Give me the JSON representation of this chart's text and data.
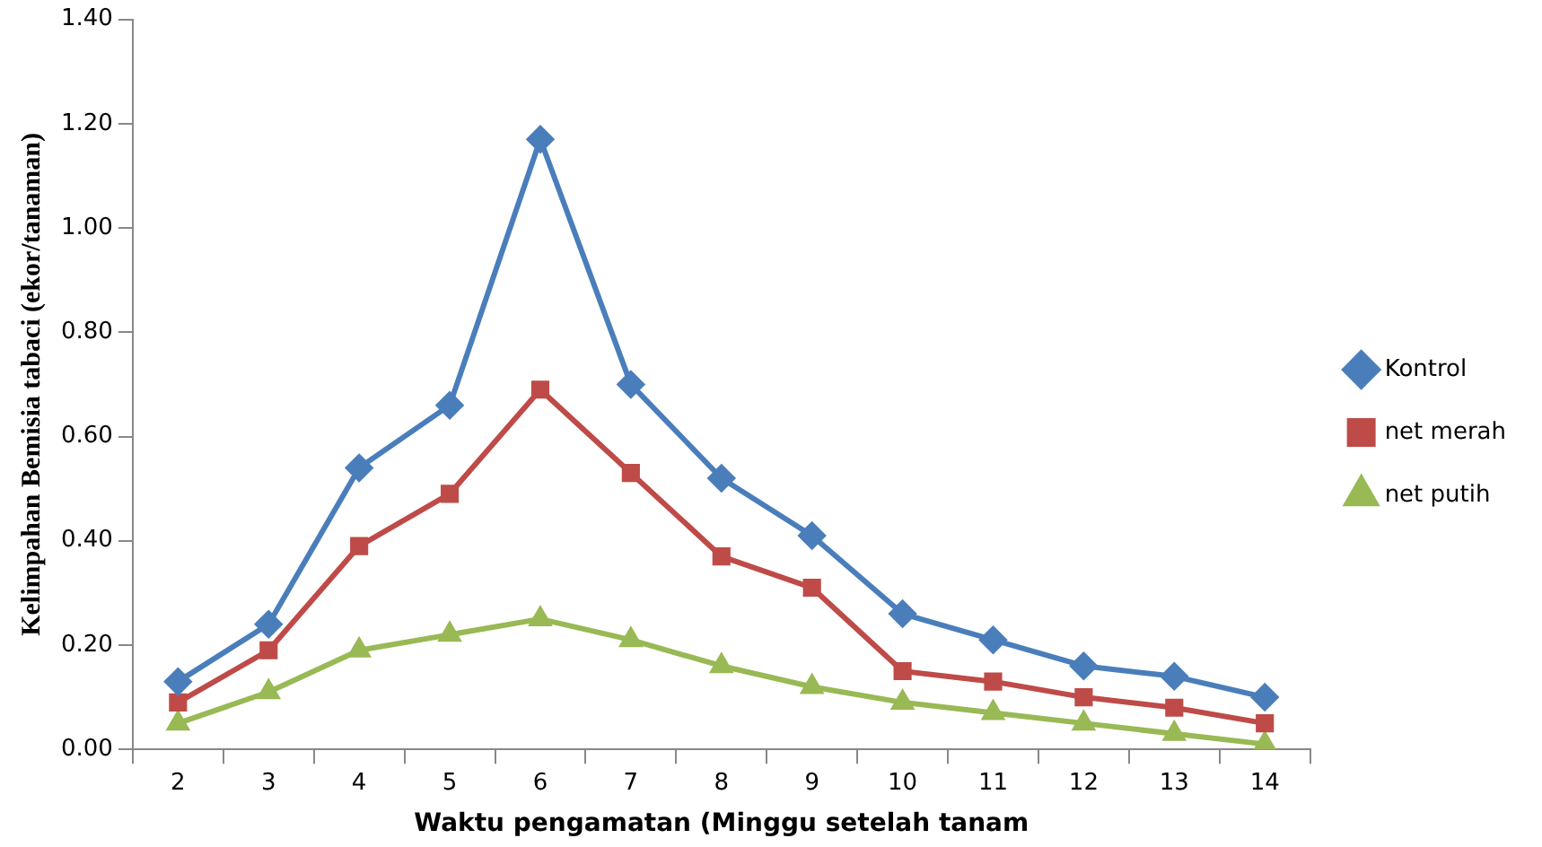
{
  "chart_data": {
    "type": "line",
    "xlabel": "Waktu pengamatan (Minggu setelah tanam",
    "ylabel": "Kelimpahan Bemisia tabaci (ekor/tanaman)",
    "categories": [
      "2",
      "3",
      "4",
      "5",
      "6",
      "7",
      "8",
      "9",
      "10",
      "11",
      "12",
      "13",
      "14"
    ],
    "series": [
      {
        "name": "Kontrol",
        "color": "#4a7ebb",
        "marker": "diamond",
        "values": [
          0.13,
          0.24,
          0.54,
          0.66,
          1.17,
          0.7,
          0.52,
          0.41,
          0.26,
          0.21,
          0.16,
          0.14,
          0.1
        ]
      },
      {
        "name": "net merah",
        "color": "#be4b48",
        "marker": "square",
        "values": [
          0.09,
          0.19,
          0.39,
          0.49,
          0.69,
          0.53,
          0.37,
          0.31,
          0.15,
          0.13,
          0.1,
          0.08,
          0.05
        ]
      },
      {
        "name": "net putih",
        "color": "#98b954",
        "marker": "triangle",
        "values": [
          0.05,
          0.11,
          0.19,
          0.22,
          0.25,
          0.21,
          0.16,
          0.12,
          0.09,
          0.07,
          0.05,
          0.03,
          0.01
        ]
      }
    ],
    "ylim": [
      0,
      1.4
    ],
    "yticks": [
      {
        "value": 0,
        "label": "0.00"
      },
      {
        "value": 0.2,
        "label": "0.20"
      },
      {
        "value": 0.4,
        "label": "0.40"
      },
      {
        "value": 0.6,
        "label": "0.60"
      },
      {
        "value": 0.8,
        "label": "0.80"
      },
      {
        "value": 1.0,
        "label": "1.00"
      },
      {
        "value": 1.2,
        "label": "1.20"
      },
      {
        "value": 1.4,
        "label": "1.40"
      }
    ],
    "grid": false,
    "legend": "right",
    "line_style": "solid"
  }
}
